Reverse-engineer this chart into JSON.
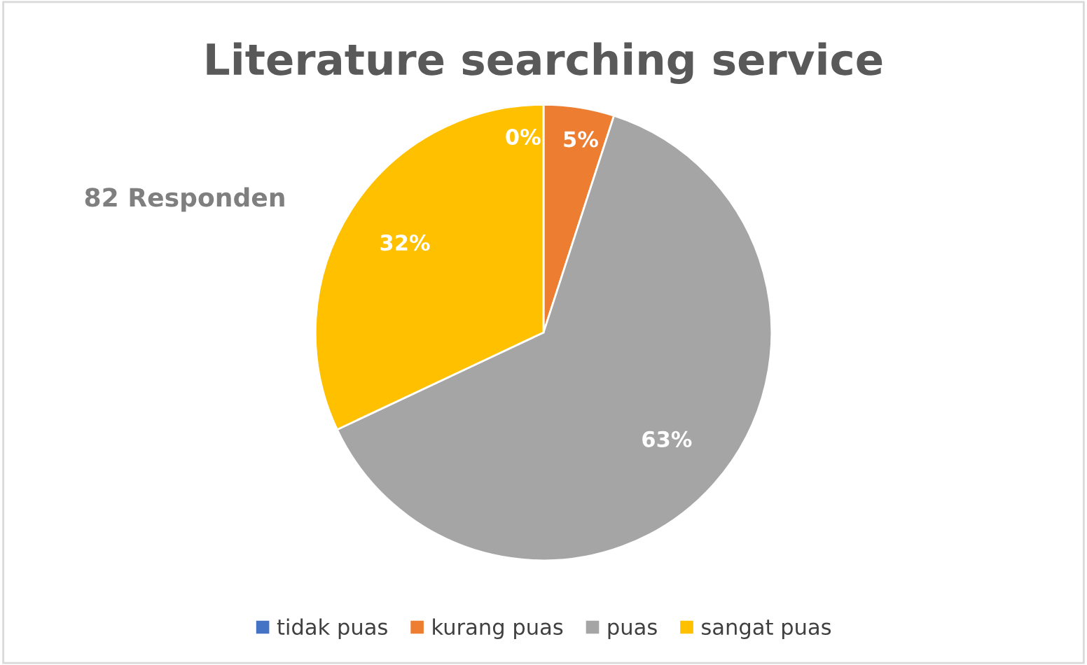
{
  "chart_data": {
    "type": "pie",
    "title": "Literature searching service",
    "categories": [
      "tidak puas",
      "kurang puas",
      "puas",
      "sangat puas"
    ],
    "values": [
      0,
      5,
      63,
      32
    ],
    "colors": [
      "#4472c4",
      "#ed7d31",
      "#a5a5a5",
      "#ffc000"
    ],
    "value_labels": [
      "0%",
      "5%",
      "63%",
      "32%"
    ],
    "annotations": [
      "82 Responden"
    ],
    "legend": "bottom"
  }
}
